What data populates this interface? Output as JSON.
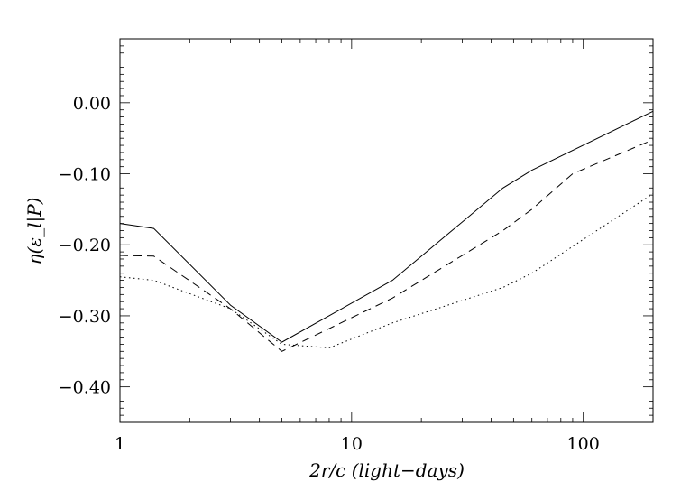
{
  "chart_data": {
    "type": "line",
    "xlabel": "2r/c (light−days)",
    "ylabel": "η(ε_l|P)",
    "xscale": "log",
    "xlim": [
      1,
      200
    ],
    "ylim": [
      -0.45,
      0.09
    ],
    "xticks": [
      {
        "value": 1,
        "label": "1"
      },
      {
        "value": 10,
        "label": "10"
      },
      {
        "value": 100,
        "label": "100"
      }
    ],
    "yticks": [
      {
        "value": 0.0,
        "label": "0.00"
      },
      {
        "value": -0.1,
        "label": "−0.10"
      },
      {
        "value": -0.2,
        "label": "−0.20"
      },
      {
        "value": -0.3,
        "label": "−0.30"
      },
      {
        "value": -0.4,
        "label": "−0.40"
      }
    ],
    "grid": false,
    "series": [
      {
        "style": "solid",
        "x": [
          1,
          1.4,
          3,
          5,
          15,
          45,
          60,
          200
        ],
        "y": [
          -0.17,
          -0.177,
          -0.285,
          -0.337,
          -0.25,
          -0.12,
          -0.095,
          -0.012
        ]
      },
      {
        "style": "dashed",
        "x": [
          1,
          1.4,
          3,
          5,
          15,
          45,
          60,
          90,
          200
        ],
        "y": [
          -0.215,
          -0.216,
          -0.29,
          -0.35,
          -0.275,
          -0.18,
          -0.15,
          -0.1,
          -0.052
        ]
      },
      {
        "style": "dotted",
        "x": [
          1,
          1.4,
          3,
          5,
          8,
          15,
          45,
          60,
          200
        ],
        "y": [
          -0.245,
          -0.25,
          -0.29,
          -0.34,
          -0.345,
          -0.31,
          -0.26,
          -0.24,
          -0.128
        ]
      }
    ]
  }
}
